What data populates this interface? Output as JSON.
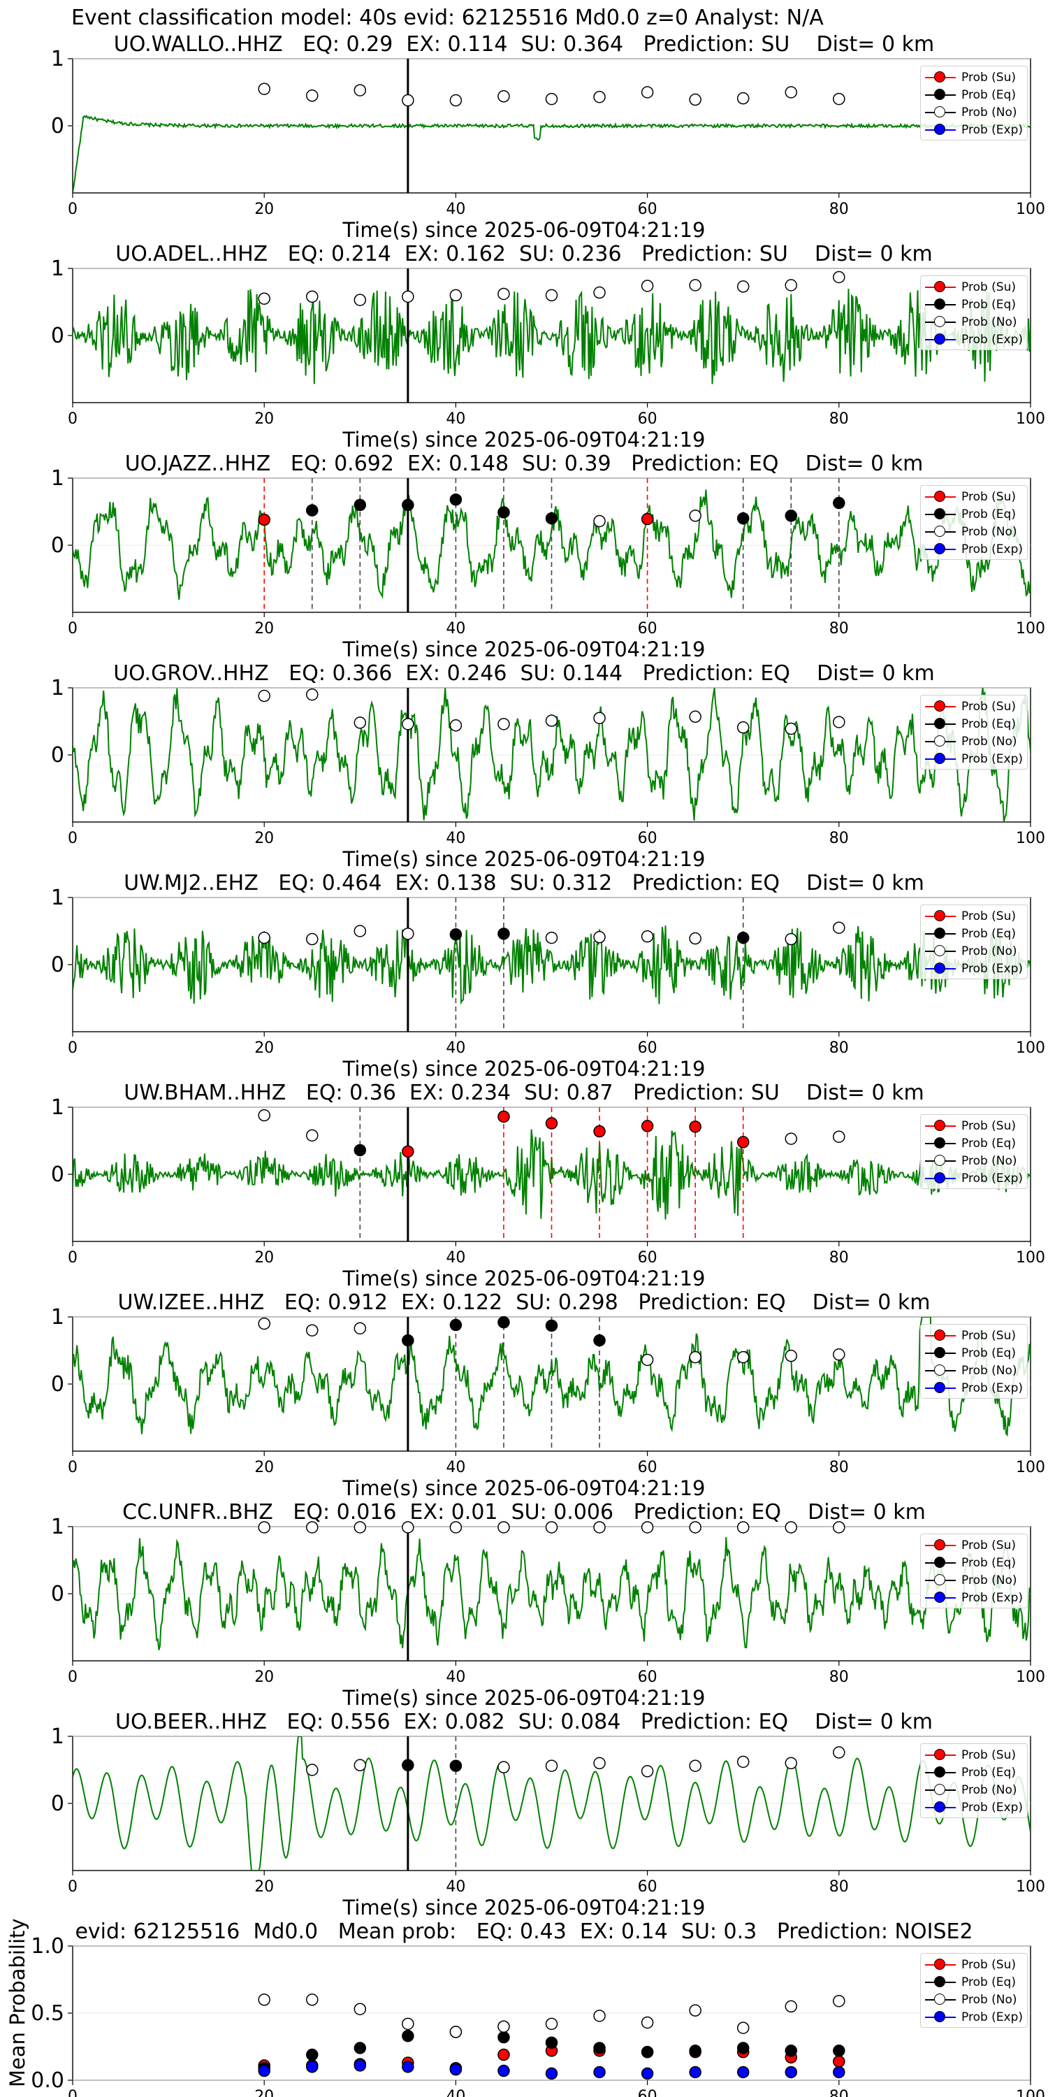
{
  "figure": {
    "title": "Event classification model: 40s evid: 62125516 Md0.0 z=0 Analyst: N/A",
    "legend": [
      {
        "label": "Prob (Su)",
        "color": "#ff0000"
      },
      {
        "label": "Prob (Eq)",
        "color": "#000000"
      },
      {
        "label": "Prob (No)",
        "color": "#ffffff"
      },
      {
        "label": "Prob (Exp)",
        "color": "#0000ff"
      }
    ],
    "colors": {
      "waveform": "#008000",
      "pick_line": "#000000",
      "eq_dash": "#444444",
      "su_dash": "#ff0000"
    }
  },
  "chart_data": [
    {
      "type": "line",
      "title": "UO.WALLO..HHZ   EQ: 0.29  EX: 0.114  SU: 0.364   Prediction: SU    Dist= 0 km",
      "xlabel": "Time(s) since 2025-06-09T04:21:19",
      "xlim": [
        0,
        100
      ],
      "ylim": [
        -1,
        1
      ],
      "xticks": [
        "0",
        "20",
        "40",
        "60",
        "80",
        "100"
      ],
      "yticks": [
        "1",
        "0"
      ],
      "pick_time": 35,
      "waveform": {
        "style": "onset",
        "amplitude": 0.04
      },
      "windows": [
        {
          "t": 20,
          "prob": 0.55,
          "class": "No"
        },
        {
          "t": 25,
          "prob": 0.45,
          "class": "No"
        },
        {
          "t": 30,
          "prob": 0.53,
          "class": "No"
        },
        {
          "t": 35,
          "prob": 0.38,
          "class": "No"
        },
        {
          "t": 40,
          "prob": 0.38,
          "class": "No"
        },
        {
          "t": 45,
          "prob": 0.44,
          "class": "No"
        },
        {
          "t": 50,
          "prob": 0.4,
          "class": "No"
        },
        {
          "t": 55,
          "prob": 0.43,
          "class": "No"
        },
        {
          "t": 60,
          "prob": 0.5,
          "class": "No"
        },
        {
          "t": 65,
          "prob": 0.39,
          "class": "No"
        },
        {
          "t": 70,
          "prob": 0.41,
          "class": "No"
        },
        {
          "t": 75,
          "prob": 0.5,
          "class": "No"
        },
        {
          "t": 80,
          "prob": 0.4,
          "class": "No"
        }
      ]
    },
    {
      "type": "line",
      "title": "UO.ADEL..HHZ   EQ: 0.214  EX: 0.162  SU: 0.236   Prediction: SU    Dist= 0 km",
      "xlabel": "Time(s) since 2025-06-09T04:21:19",
      "xlim": [
        0,
        100
      ],
      "ylim": [
        -1,
        1
      ],
      "xticks": [
        "0",
        "20",
        "40",
        "60",
        "80",
        "100"
      ],
      "yticks": [
        "1",
        "0"
      ],
      "pick_time": 35,
      "waveform": {
        "style": "noise",
        "amplitude": 0.75
      },
      "windows": [
        {
          "t": 20,
          "prob": 0.55,
          "class": "No"
        },
        {
          "t": 25,
          "prob": 0.58,
          "class": "No"
        },
        {
          "t": 30,
          "prob": 0.53,
          "class": "No"
        },
        {
          "t": 35,
          "prob": 0.58,
          "class": "No"
        },
        {
          "t": 40,
          "prob": 0.6,
          "class": "No"
        },
        {
          "t": 45,
          "prob": 0.62,
          "class": "No"
        },
        {
          "t": 50,
          "prob": 0.6,
          "class": "No"
        },
        {
          "t": 55,
          "prob": 0.64,
          "class": "No"
        },
        {
          "t": 60,
          "prob": 0.74,
          "class": "No"
        },
        {
          "t": 65,
          "prob": 0.75,
          "class": "No"
        },
        {
          "t": 70,
          "prob": 0.73,
          "class": "No"
        },
        {
          "t": 75,
          "prob": 0.75,
          "class": "No"
        },
        {
          "t": 80,
          "prob": 0.87,
          "class": "No"
        }
      ]
    },
    {
      "type": "line",
      "title": "UO.JAZZ..HHZ   EQ: 0.692  EX: 0.148  SU: 0.39   Prediction: EQ    Dist= 0 km",
      "xlabel": "Time(s) since 2025-06-09T04:21:19",
      "xlim": [
        0,
        100
      ],
      "ylim": [
        -1,
        1
      ],
      "xticks": [
        "0",
        "20",
        "40",
        "60",
        "80",
        "100"
      ],
      "yticks": [
        "1",
        "0"
      ],
      "pick_time": 35,
      "waveform": {
        "style": "oscillation",
        "amplitude": 0.55,
        "period": 5.2
      },
      "windows": [
        {
          "t": 20,
          "prob": 0.38,
          "class": "Su"
        },
        {
          "t": 25,
          "prob": 0.52,
          "class": "Eq"
        },
        {
          "t": 30,
          "prob": 0.6,
          "class": "Eq"
        },
        {
          "t": 35,
          "prob": 0.6,
          "class": "Eq"
        },
        {
          "t": 40,
          "prob": 0.68,
          "class": "Eq"
        },
        {
          "t": 45,
          "prob": 0.49,
          "class": "Eq"
        },
        {
          "t": 50,
          "prob": 0.4,
          "class": "Eq"
        },
        {
          "t": 55,
          "prob": 0.36,
          "class": "No"
        },
        {
          "t": 60,
          "prob": 0.39,
          "class": "Su"
        },
        {
          "t": 65,
          "prob": 0.44,
          "class": "No"
        },
        {
          "t": 70,
          "prob": 0.4,
          "class": "Eq"
        },
        {
          "t": 75,
          "prob": 0.44,
          "class": "Eq"
        },
        {
          "t": 80,
          "prob": 0.63,
          "class": "Eq"
        }
      ]
    },
    {
      "type": "line",
      "title": "UO.GROV..HHZ   EQ: 0.366  EX: 0.246  SU: 0.144   Prediction: EQ    Dist= 0 km",
      "xlabel": "Time(s) since 2025-06-09T04:21:19",
      "xlim": [
        0,
        100
      ],
      "ylim": [
        -1,
        1
      ],
      "xticks": [
        "0",
        "20",
        "40",
        "60",
        "80",
        "100"
      ],
      "yticks": [
        "1",
        "0"
      ],
      "pick_time": 35,
      "waveform": {
        "style": "oscillation",
        "amplitude": 0.7,
        "period": 4.0
      },
      "windows": [
        {
          "t": 20,
          "prob": 0.88,
          "class": "No"
        },
        {
          "t": 25,
          "prob": 0.9,
          "class": "No"
        },
        {
          "t": 30,
          "prob": 0.48,
          "class": "No"
        },
        {
          "t": 35,
          "prob": 0.46,
          "class": "No"
        },
        {
          "t": 40,
          "prob": 0.44,
          "class": "No"
        },
        {
          "t": 45,
          "prob": 0.46,
          "class": "No"
        },
        {
          "t": 50,
          "prob": 0.51,
          "class": "No"
        },
        {
          "t": 55,
          "prob": 0.55,
          "class": "No"
        },
        {
          "t": 65,
          "prob": 0.57,
          "class": "No"
        },
        {
          "t": 70,
          "prob": 0.41,
          "class": "No"
        },
        {
          "t": 75,
          "prob": 0.39,
          "class": "No"
        },
        {
          "t": 80,
          "prob": 0.49,
          "class": "No"
        }
      ]
    },
    {
      "type": "line",
      "title": "UW.MJ2..EHZ   EQ: 0.464  EX: 0.138  SU: 0.312   Prediction: EQ    Dist= 0 km",
      "xlabel": "Time(s) since 2025-06-09T04:21:19",
      "xlim": [
        0,
        100
      ],
      "ylim": [
        -1,
        1
      ],
      "xticks": [
        "0",
        "20",
        "40",
        "60",
        "80",
        "100"
      ],
      "yticks": [
        "1",
        "0"
      ],
      "pick_time": 35,
      "waveform": {
        "style": "noise",
        "amplitude": 0.6
      },
      "windows": [
        {
          "t": 20,
          "prob": 0.4,
          "class": "No"
        },
        {
          "t": 25,
          "prob": 0.38,
          "class": "No"
        },
        {
          "t": 30,
          "prob": 0.5,
          "class": "No"
        },
        {
          "t": 35,
          "prob": 0.46,
          "class": "No"
        },
        {
          "t": 40,
          "prob": 0.45,
          "class": "Eq"
        },
        {
          "t": 45,
          "prob": 0.46,
          "class": "Eq"
        },
        {
          "t": 50,
          "prob": 0.4,
          "class": "No"
        },
        {
          "t": 55,
          "prob": 0.41,
          "class": "No"
        },
        {
          "t": 60,
          "prob": 0.42,
          "class": "No"
        },
        {
          "t": 65,
          "prob": 0.39,
          "class": "No"
        },
        {
          "t": 70,
          "prob": 0.4,
          "class": "Eq"
        },
        {
          "t": 75,
          "prob": 0.38,
          "class": "No"
        },
        {
          "t": 80,
          "prob": 0.55,
          "class": "No"
        }
      ]
    },
    {
      "type": "line",
      "title": "UW.BHAM..HHZ   EQ: 0.36  EX: 0.234  SU: 0.87   Prediction: SU    Dist= 0 km",
      "xlabel": "Time(s) since 2025-06-09T04:21:19",
      "xlim": [
        0,
        100
      ],
      "ylim": [
        -1,
        1
      ],
      "xticks": [
        "0",
        "20",
        "40",
        "60",
        "80",
        "100"
      ],
      "yticks": [
        "1",
        "0"
      ],
      "pick_time": 35,
      "waveform": {
        "style": "noise",
        "amplitude": 0.35,
        "burst": [
          45,
          70
        ]
      },
      "windows": [
        {
          "t": 20,
          "prob": 0.88,
          "class": "No"
        },
        {
          "t": 25,
          "prob": 0.58,
          "class": "No"
        },
        {
          "t": 30,
          "prob": 0.36,
          "class": "Eq"
        },
        {
          "t": 35,
          "prob": 0.34,
          "class": "Su"
        },
        {
          "t": 45,
          "prob": 0.86,
          "class": "Su"
        },
        {
          "t": 50,
          "prob": 0.76,
          "class": "Su"
        },
        {
          "t": 55,
          "prob": 0.64,
          "class": "Su"
        },
        {
          "t": 60,
          "prob": 0.72,
          "class": "Su"
        },
        {
          "t": 65,
          "prob": 0.71,
          "class": "Su"
        },
        {
          "t": 70,
          "prob": 0.48,
          "class": "Su"
        },
        {
          "t": 75,
          "prob": 0.53,
          "class": "No"
        },
        {
          "t": 80,
          "prob": 0.56,
          "class": "No"
        }
      ]
    },
    {
      "type": "line",
      "title": "UW.IZEE..HHZ   EQ: 0.912  EX: 0.122  SU: 0.298   Prediction: EQ    Dist= 0 km",
      "xlabel": "Time(s) since 2025-06-09T04:21:19",
      "xlim": [
        0,
        100
      ],
      "ylim": [
        -1,
        1
      ],
      "xticks": [
        "0",
        "20",
        "40",
        "60",
        "80",
        "100"
      ],
      "yticks": [
        "1",
        "0"
      ],
      "pick_time": 35,
      "waveform": {
        "style": "oscillation",
        "amplitude": 0.5,
        "period": 5.0,
        "spike": 89
      },
      "windows": [
        {
          "t": 20,
          "prob": 0.9,
          "class": "No"
        },
        {
          "t": 25,
          "prob": 0.8,
          "class": "No"
        },
        {
          "t": 30,
          "prob": 0.83,
          "class": "No"
        },
        {
          "t": 35,
          "prob": 0.65,
          "class": "Eq"
        },
        {
          "t": 40,
          "prob": 0.88,
          "class": "Eq"
        },
        {
          "t": 45,
          "prob": 0.92,
          "class": "Eq"
        },
        {
          "t": 50,
          "prob": 0.87,
          "class": "Eq"
        },
        {
          "t": 55,
          "prob": 0.65,
          "class": "Eq"
        },
        {
          "t": 60,
          "prob": 0.36,
          "class": "No"
        },
        {
          "t": 65,
          "prob": 0.4,
          "class": "No"
        },
        {
          "t": 70,
          "prob": 0.4,
          "class": "No"
        },
        {
          "t": 75,
          "prob": 0.42,
          "class": "No"
        },
        {
          "t": 80,
          "prob": 0.44,
          "class": "No"
        }
      ]
    },
    {
      "type": "line",
      "title": "CC.UNFR..BHZ   EQ: 0.016  EX: 0.01  SU: 0.006   Prediction: EQ    Dist= 0 km",
      "xlabel": "Time(s) since 2025-06-09T04:21:19",
      "xlim": [
        0,
        100
      ],
      "ylim": [
        -1,
        1
      ],
      "xticks": [
        "0",
        "20",
        "40",
        "60",
        "80",
        "100"
      ],
      "yticks": [
        "1",
        "0"
      ],
      "pick_time": 35,
      "waveform": {
        "style": "oscillation",
        "amplitude": 0.55,
        "period": 3.6
      },
      "windows": [
        {
          "t": 20,
          "prob": 0.99,
          "class": "No"
        },
        {
          "t": 25,
          "prob": 0.99,
          "class": "No"
        },
        {
          "t": 30,
          "prob": 0.99,
          "class": "No"
        },
        {
          "t": 35,
          "prob": 0.99,
          "class": "No"
        },
        {
          "t": 40,
          "prob": 0.99,
          "class": "No"
        },
        {
          "t": 45,
          "prob": 0.99,
          "class": "No"
        },
        {
          "t": 50,
          "prob": 0.99,
          "class": "No"
        },
        {
          "t": 55,
          "prob": 0.99,
          "class": "No"
        },
        {
          "t": 60,
          "prob": 0.99,
          "class": "No"
        },
        {
          "t": 65,
          "prob": 0.99,
          "class": "No"
        },
        {
          "t": 70,
          "prob": 0.99,
          "class": "No"
        },
        {
          "t": 75,
          "prob": 0.99,
          "class": "No"
        },
        {
          "t": 80,
          "prob": 0.99,
          "class": "No"
        }
      ]
    },
    {
      "type": "line",
      "title": "UO.BEER..HHZ   EQ: 0.556  EX: 0.082  SU: 0.084   Prediction: EQ    Dist= 0 km",
      "xlabel": "Time(s) since 2025-06-09T04:21:19",
      "xlim": [
        0,
        100
      ],
      "ylim": [
        -1,
        1
      ],
      "xticks": [
        "0",
        "20",
        "40",
        "60",
        "80",
        "100"
      ],
      "yticks": [
        "1",
        "0"
      ],
      "pick_time": 35,
      "waveform": {
        "style": "smooth",
        "amplitude": 0.45,
        "period": 3.4
      },
      "windows": [
        {
          "t": 25,
          "prob": 0.5,
          "class": "No"
        },
        {
          "t": 30,
          "prob": 0.57,
          "class": "No"
        },
        {
          "t": 35,
          "prob": 0.57,
          "class": "Eq"
        },
        {
          "t": 40,
          "prob": 0.56,
          "class": "Eq"
        },
        {
          "t": 45,
          "prob": 0.54,
          "class": "No"
        },
        {
          "t": 50,
          "prob": 0.56,
          "class": "No"
        },
        {
          "t": 55,
          "prob": 0.6,
          "class": "No"
        },
        {
          "t": 60,
          "prob": 0.48,
          "class": "No"
        },
        {
          "t": 65,
          "prob": 0.56,
          "class": "No"
        },
        {
          "t": 70,
          "prob": 0.62,
          "class": "No"
        },
        {
          "t": 75,
          "prob": 0.6,
          "class": "No"
        },
        {
          "t": 80,
          "prob": 0.76,
          "class": "No"
        }
      ]
    },
    {
      "type": "scatter",
      "title": "evid: 62125516  Md0.0   Mean prob:   EQ: 0.43  EX: 0.14  SU: 0.3   Prediction: NOISE2",
      "ylabel": "Mean Probability",
      "xlim": [
        0,
        100
      ],
      "ylim": [
        0,
        1
      ],
      "xticks": [
        "0",
        "20",
        "40",
        "60",
        "80",
        "100"
      ],
      "yticks": [
        "1.0",
        "0.5",
        "0.0"
      ],
      "x": [
        20,
        25,
        30,
        35,
        40,
        45,
        50,
        55,
        60,
        65,
        70,
        75,
        80
      ],
      "series": [
        {
          "name": "Prob (Su)",
          "color": "#ff0000",
          "values": [
            0.11,
            0.11,
            0.12,
            0.13,
            0.09,
            0.19,
            0.22,
            0.22,
            0.21,
            0.21,
            0.21,
            0.17,
            0.14
          ]
        },
        {
          "name": "Prob (Eq)",
          "color": "#000000",
          "values": [
            0.09,
            0.19,
            0.24,
            0.33,
            0.36,
            0.32,
            0.28,
            0.24,
            0.21,
            0.22,
            0.24,
            0.22,
            0.22
          ]
        },
        {
          "name": "Prob (No)",
          "color": "#ffffff",
          "values": [
            0.6,
            0.6,
            0.53,
            0.42,
            0.36,
            0.4,
            0.42,
            0.48,
            0.43,
            0.52,
            0.39,
            0.55,
            0.59
          ]
        },
        {
          "name": "Prob (Exp)",
          "color": "#0000ff",
          "values": [
            0.07,
            0.1,
            0.11,
            0.1,
            0.08,
            0.07,
            0.05,
            0.06,
            0.05,
            0.06,
            0.06,
            0.06,
            0.06
          ]
        }
      ]
    }
  ]
}
